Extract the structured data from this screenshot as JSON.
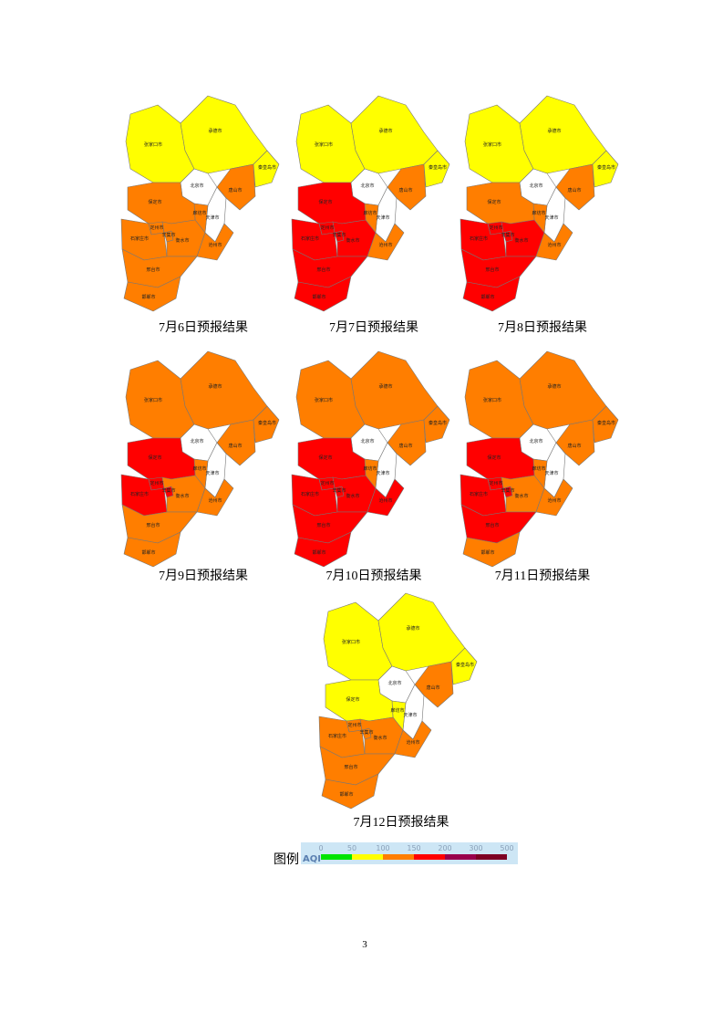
{
  "cities": [
    "张家口市",
    "承德市",
    "北京市",
    "天津市",
    "廊坊市",
    "唐山市",
    "秦皇岛市",
    "保定市",
    "定州市",
    "石家庄市",
    "辛集市",
    "衡水市",
    "沧州市",
    "邢台市",
    "邯郸市"
  ],
  "maps": [
    {
      "caption": "7月6日预报结果",
      "colors": [
        "#ffff00",
        "#ffff00",
        "#ffffff",
        "#ffffff",
        "#ff7e00",
        "#ff7e00",
        "#ffff00",
        "#ff7e00",
        "#ff7e00",
        "#ff7e00",
        "#ff7e00",
        "#ff7e00",
        "#ff7e00",
        "#ff7e00",
        "#ff7e00"
      ]
    },
    {
      "caption": "7月7日预报结果",
      "colors": [
        "#ffff00",
        "#ffff00",
        "#ffffff",
        "#ffffff",
        "#ff7e00",
        "#ff7e00",
        "#ffff00",
        "#ff0000",
        "#ff0000",
        "#ff0000",
        "#ff0000",
        "#ff0000",
        "#ff7e00",
        "#ff0000",
        "#ff0000"
      ]
    },
    {
      "caption": "7月8日预报结果",
      "colors": [
        "#ffff00",
        "#ffff00",
        "#ffffff",
        "#ffffff",
        "#ff7e00",
        "#ff7e00",
        "#ffff00",
        "#ff7e00",
        "#ff0000",
        "#ff0000",
        "#ff0000",
        "#ff0000",
        "#ff7e00",
        "#ff0000",
        "#ff0000"
      ]
    },
    {
      "caption": "7月9日预报结果",
      "colors": [
        "#ff7e00",
        "#ff7e00",
        "#ffffff",
        "#ffffff",
        "#ff7e00",
        "#ff7e00",
        "#ff7e00",
        "#ff0000",
        "#ff0000",
        "#ff0000",
        "#ff0000",
        "#ff7e00",
        "#ff7e00",
        "#ff7e00",
        "#ff7e00"
      ]
    },
    {
      "caption": "7月10日预报结果",
      "colors": [
        "#ff7e00",
        "#ff7e00",
        "#ffffff",
        "#ffffff",
        "#ff7e00",
        "#ff7e00",
        "#ff7e00",
        "#ff0000",
        "#ff0000",
        "#ff0000",
        "#ff0000",
        "#ff0000",
        "#ff0000",
        "#ff0000",
        "#ff0000"
      ]
    },
    {
      "caption": "7月11日预报结果",
      "colors": [
        "#ff7e00",
        "#ff7e00",
        "#ffffff",
        "#ffffff",
        "#ff7e00",
        "#ff7e00",
        "#ff7e00",
        "#ff0000",
        "#ff0000",
        "#ff0000",
        "#ff0000",
        "#ff7e00",
        "#ff7e00",
        "#ff0000",
        "#ff7e00"
      ]
    },
    {
      "caption": "7月12日预报结果",
      "colors": [
        "#ffff00",
        "#ffff00",
        "#ffffff",
        "#ffffff",
        "#ffff00",
        "#ff7e00",
        "#ffff00",
        "#ffff00",
        "#ff7e00",
        "#ff7e00",
        "#ff7e00",
        "#ff7e00",
        "#ff7e00",
        "#ff7e00",
        "#ff7e00"
      ]
    }
  ],
  "legend": {
    "title": "图例",
    "axis_label": "AQI",
    "ticks": [
      0,
      50,
      100,
      150,
      200,
      300,
      500
    ],
    "colors": [
      "#00e400",
      "#ffff00",
      "#ff7e00",
      "#ff0000",
      "#99004c",
      "#7e0023"
    ]
  },
  "page_number": "3"
}
